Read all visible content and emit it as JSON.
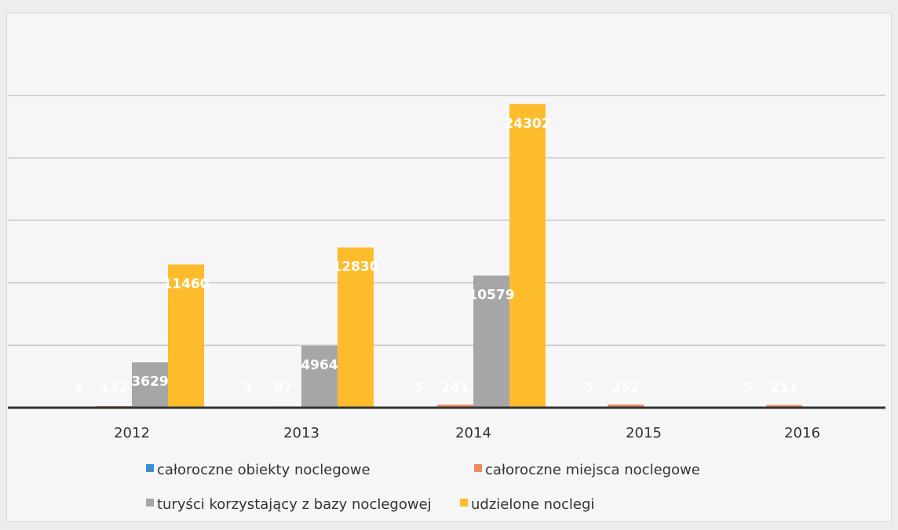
{
  "chart_data": {
    "type": "bar",
    "categories": [
      "2012",
      "2013",
      "2014",
      "2015",
      "2016"
    ],
    "series": [
      {
        "name": "całoroczne obiekty noclegowe",
        "color": "#3a8fd6",
        "values": [
          4,
          3,
          5,
          5,
          5
        ]
      },
      {
        "name": "całoroczne miejsca noclegowe",
        "color": "#f08a5d",
        "values": [
          132,
          97,
          241,
          252,
          211
        ]
      },
      {
        "name": "turyści korzystający z bazy noclegowej",
        "color": "#a6a6a6",
        "values": [
          3629,
          4964,
          10579,
          null,
          null
        ]
      },
      {
        "name": "udzielone noclegi",
        "color": "#fcbc2c",
        "values": [
          11460,
          12830,
          24302,
          null,
          null
        ]
      }
    ],
    "data_labels": [
      [
        "4",
        "132",
        "3629",
        "11460"
      ],
      [
        "3",
        "97",
        "4964",
        "12830"
      ],
      [
        "5",
        "241",
        "10579",
        "24302"
      ],
      [
        "5",
        "252",
        "",
        ""
      ],
      [
        "5",
        "211",
        "",
        ""
      ]
    ],
    "ylim": [
      0,
      30000
    ],
    "grid": true,
    "legend": "bottom"
  }
}
